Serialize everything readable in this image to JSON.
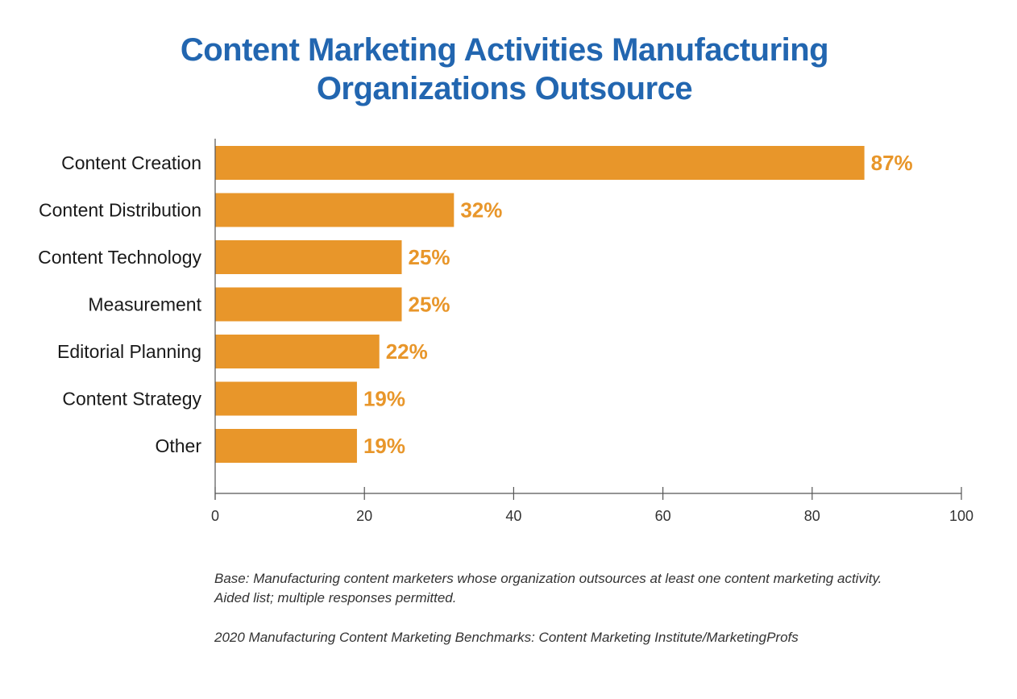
{
  "chart_data": {
    "type": "bar",
    "orientation": "horizontal",
    "title_lines": [
      "Content Marketing Activities Manufacturing",
      "Organizations Outsource"
    ],
    "categories": [
      "Content Creation",
      "Content Distribution",
      "Content Technology",
      "Measurement",
      "Editorial Planning",
      "Content Strategy",
      "Other"
    ],
    "values": [
      87,
      32,
      25,
      25,
      22,
      19,
      19
    ],
    "value_labels": [
      "87%",
      "32%",
      "25%",
      "25%",
      "22%",
      "19%",
      "19%"
    ],
    "xlim": [
      0,
      100
    ],
    "xticks": [
      0,
      20,
      40,
      60,
      80,
      100
    ],
    "grid": false,
    "bar_color": "#e8962a",
    "label_color": "#e8962a",
    "title_color": "#2266b0"
  },
  "footnotes": {
    "base_lines": [
      "Base: Manufacturing content marketers whose organization outsources at least one content marketing activity.",
      "Aided list; multiple responses permitted."
    ],
    "source": "2020 Manufacturing Content Marketing Benchmarks: Content Marketing Institute/MarketingProfs"
  }
}
